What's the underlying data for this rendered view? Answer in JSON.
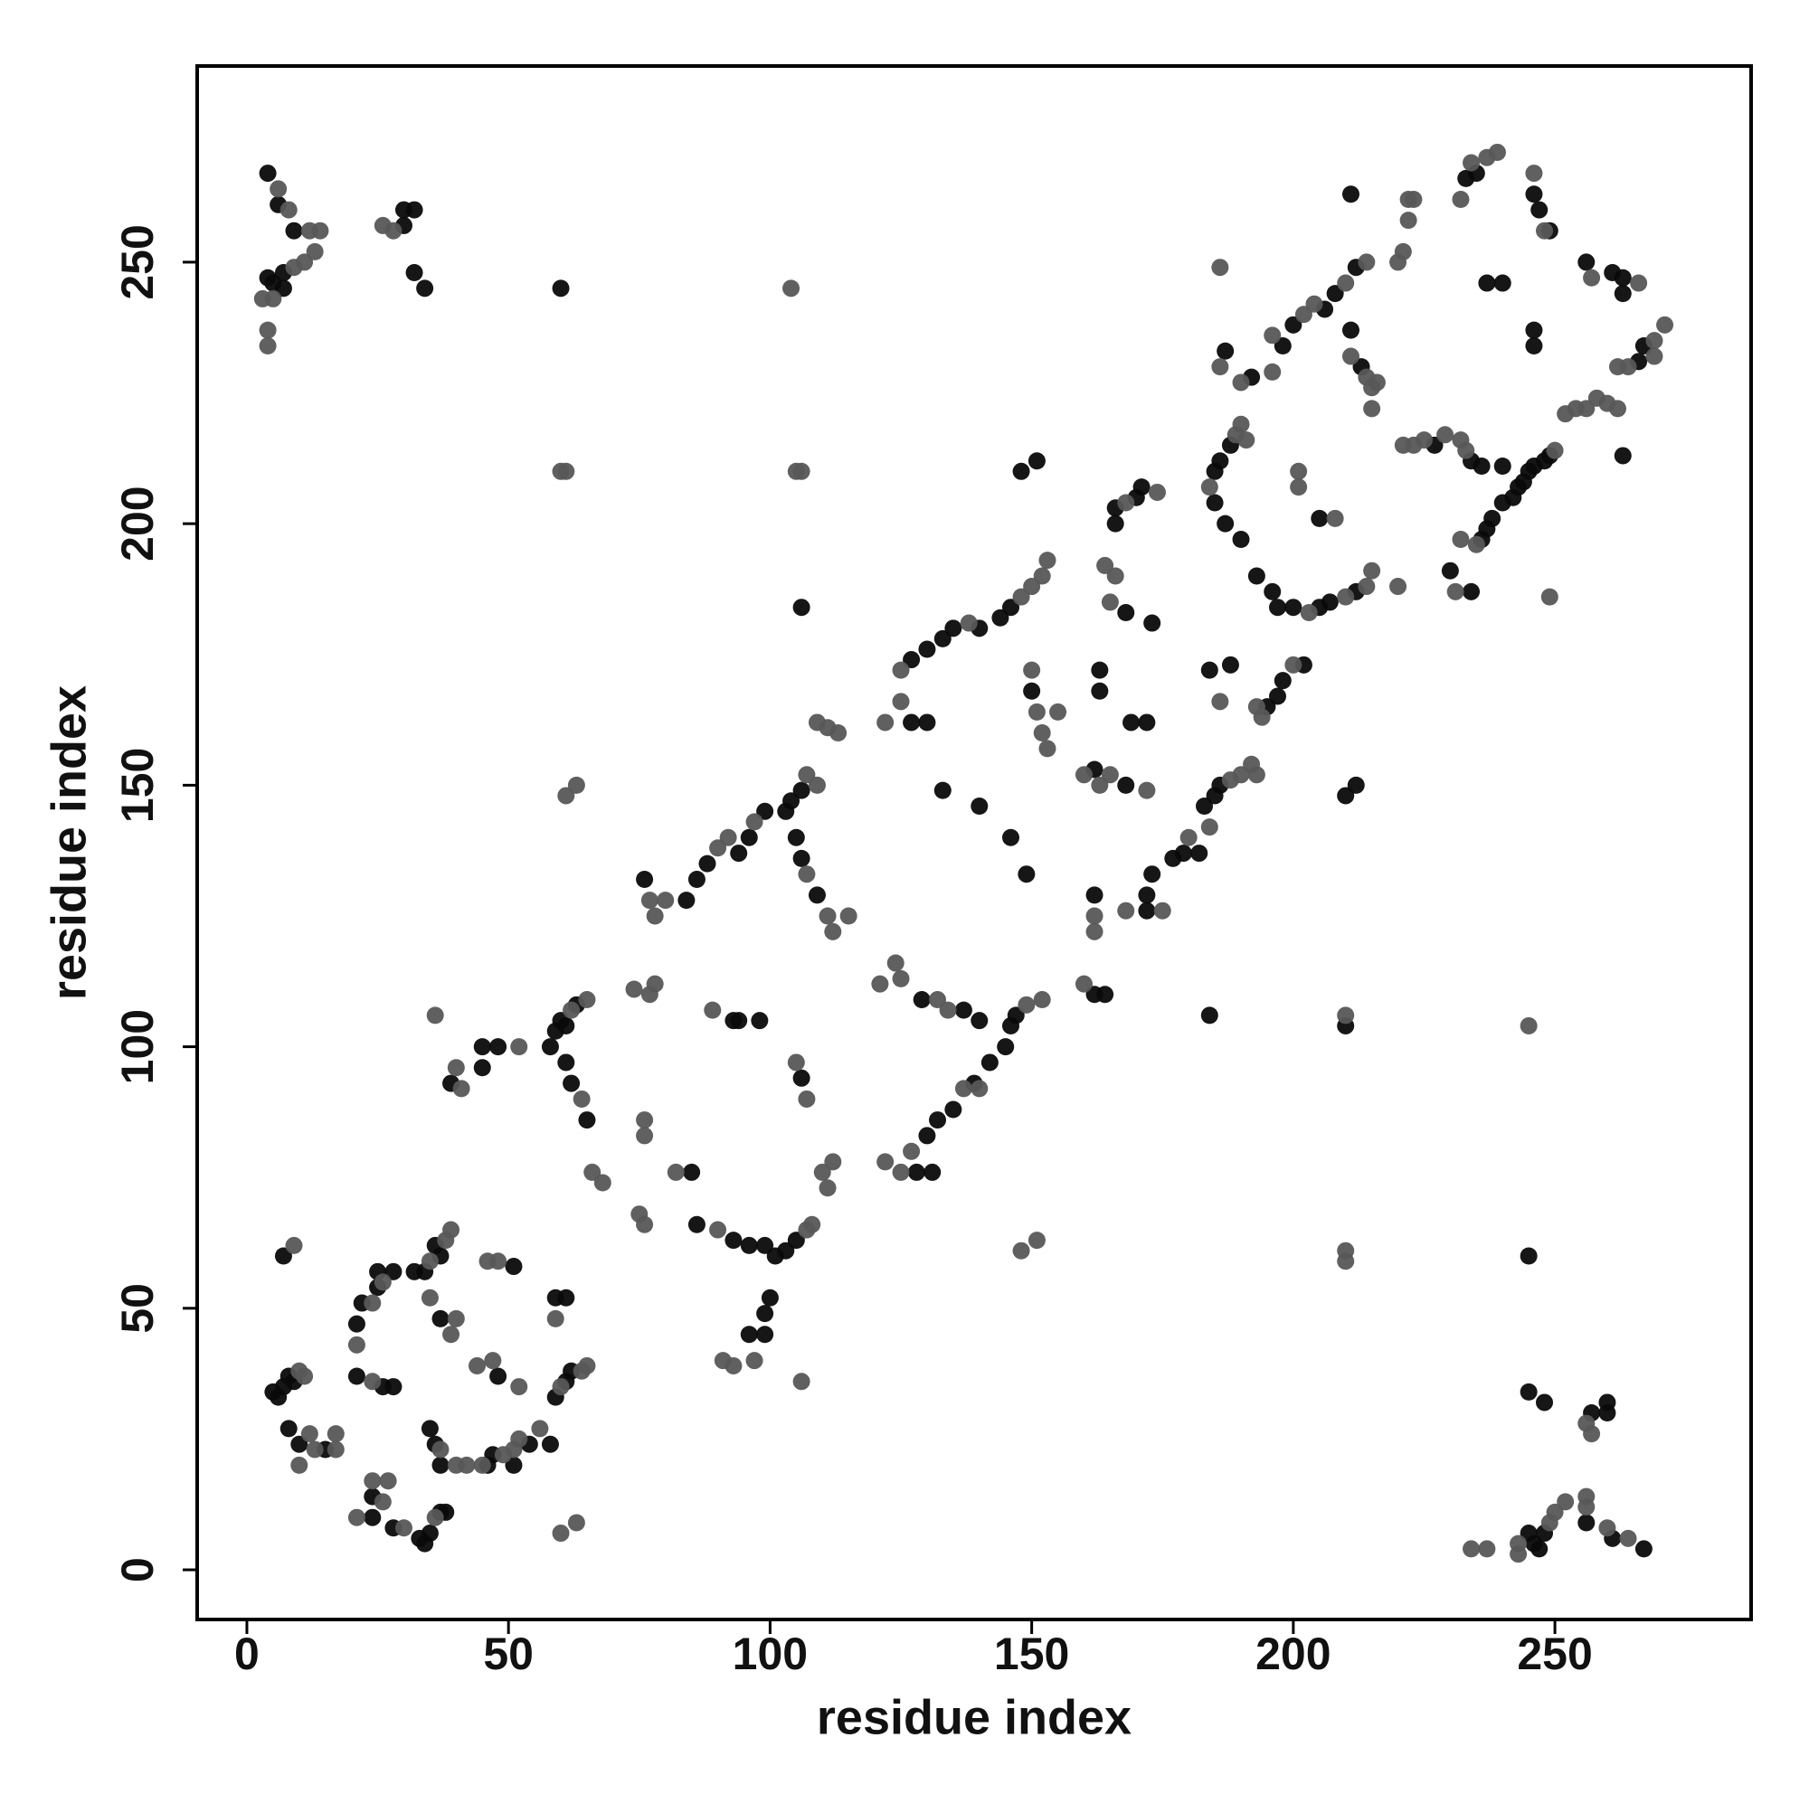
{
  "chart_data": {
    "type": "scatter",
    "xlabel": "residue index",
    "ylabel": "residue index",
    "xlim": [
      -9.5,
      287.5
    ],
    "ylim": [
      -9.5,
      287.5
    ],
    "xticks": [
      0,
      50,
      100,
      150,
      200,
      250
    ],
    "yticks": [
      0,
      50,
      100,
      150,
      200,
      250
    ],
    "grid": false,
    "series": [
      {
        "color": "#0a0a0a",
        "x": [
          4,
          6,
          9,
          4,
          5,
          7,
          7,
          30,
          32,
          30,
          32,
          34,
          60,
          267,
          261,
          256,
          247,
          246,
          245,
          248,
          260,
          260,
          257,
          248,
          245,
          245,
          5,
          6,
          7,
          8,
          9,
          8,
          10,
          15,
          7,
          24,
          24,
          28,
          33,
          34,
          35,
          37,
          38,
          21,
          21,
          22,
          25,
          25,
          28,
          26,
          28,
          32,
          34,
          36,
          37,
          37,
          35,
          36,
          37,
          46,
          47,
          51,
          54,
          58,
          51,
          48,
          59,
          61,
          59,
          61,
          62,
          39,
          45,
          45,
          48,
          96,
          99,
          99,
          100,
          58,
          59,
          60,
          61,
          63,
          61,
          62,
          65,
          85,
          86,
          93,
          94,
          98,
          93,
          96,
          99,
          101,
          103,
          105,
          106,
          76,
          84,
          86,
          88,
          94,
          96,
          99,
          103,
          104,
          106,
          105,
          106,
          109,
          106,
          129,
          137,
          128,
          131,
          130,
          132,
          135,
          139,
          142,
          145,
          146,
          147,
          140,
          127,
          130,
          133,
          135,
          140,
          144,
          146,
          127,
          130,
          133,
          140,
          146,
          149,
          148,
          151,
          150,
          162,
          168,
          162,
          164,
          162,
          163,
          163,
          166,
          166,
          170,
          171,
          168,
          169,
          172,
          173,
          172,
          172,
          173,
          177,
          179,
          182,
          183,
          185,
          186,
          184,
          184,
          188,
          185,
          186,
          188,
          185,
          187,
          190,
          192,
          187,
          193,
          196,
          197,
          200,
          205,
          207,
          212,
          195,
          197,
          198,
          202,
          198,
          200,
          206,
          208,
          212,
          205,
          210,
          212,
          210,
          213,
          211,
          211,
          227,
          234,
          236,
          230,
          234,
          236,
          237,
          238,
          240,
          242,
          243,
          244,
          245,
          246,
          248,
          249,
          233,
          235,
          240,
          240,
          237,
          246,
          247,
          249,
          246,
          246,
          263,
          256,
          261,
          263,
          263,
          266,
          267
        ],
        "values": [
          267,
          261,
          256,
          247,
          246,
          245,
          248,
          260,
          260,
          257,
          248,
          245,
          245,
          4,
          6,
          9,
          4,
          5,
          7,
          7,
          30,
          32,
          30,
          32,
          34,
          60,
          34,
          33,
          35,
          37,
          36,
          27,
          24,
          23,
          60,
          10,
          14,
          8,
          6,
          5,
          7,
          11,
          11,
          37,
          47,
          51,
          54,
          57,
          57,
          35,
          35,
          57,
          57,
          62,
          60,
          48,
          27,
          24,
          20,
          20,
          22,
          20,
          24,
          24,
          58,
          37,
          52,
          52,
          33,
          36,
          38,
          93,
          96,
          100,
          100,
          45,
          45,
          49,
          52,
          100,
          103,
          105,
          104,
          108,
          97,
          93,
          86,
          76,
          66,
          105,
          105,
          105,
          63,
          62,
          62,
          60,
          61,
          63,
          94,
          132,
          128,
          132,
          135,
          137,
          140,
          145,
          145,
          147,
          149,
          140,
          136,
          129,
          184,
          109,
          107,
          76,
          76,
          83,
          86,
          88,
          93,
          97,
          100,
          104,
          106,
          105,
          174,
          176,
          178,
          180,
          180,
          182,
          184,
          162,
          162,
          149,
          146,
          140,
          133,
          210,
          212,
          168,
          153,
          150,
          110,
          110,
          129,
          172,
          168,
          200,
          203,
          205,
          207,
          183,
          162,
          162,
          181,
          126,
          129,
          133,
          136,
          137,
          137,
          146,
          148,
          150,
          106,
          172,
          173,
          210,
          212,
          215,
          204,
          200,
          197,
          228,
          233,
          190,
          187,
          184,
          184,
          184,
          185,
          187,
          165,
          167,
          170,
          173,
          234,
          238,
          241,
          244,
          249,
          201,
          148,
          150,
          104,
          230,
          237,
          263,
          215,
          212,
          211,
          191,
          187,
          197,
          199,
          201,
          204,
          205,
          207,
          208,
          210,
          211,
          212,
          213,
          266,
          267,
          211,
          246,
          246,
          263,
          260,
          256,
          237,
          234,
          213,
          250,
          248,
          247,
          244,
          231,
          234
        ]
      },
      {
        "color": "#575757",
        "x": [
          6,
          8,
          3,
          5,
          4,
          4,
          9,
          11,
          13,
          14,
          12,
          26,
          28,
          104,
          264,
          260,
          243,
          243,
          237,
          234,
          249,
          250,
          252,
          256,
          256,
          257,
          256,
          245,
          10,
          11,
          10,
          12,
          13,
          17,
          17,
          9,
          21,
          24,
          26,
          27,
          30,
          36,
          21,
          24,
          26,
          24,
          35,
          38,
          39,
          35,
          39,
          40,
          37,
          40,
          42,
          45,
          49,
          51,
          52,
          56,
          46,
          48,
          44,
          47,
          52,
          59,
          60,
          64,
          65,
          60,
          63,
          36,
          40,
          41,
          52,
          93,
          97,
          91,
          106,
          62,
          65,
          64,
          66,
          68,
          74,
          77,
          78,
          76,
          76,
          75,
          76,
          82,
          89,
          90,
          107,
          108,
          105,
          107,
          110,
          112,
          111,
          77,
          78,
          80,
          90,
          92,
          97,
          107,
          109,
          107,
          111,
          112,
          115,
          109,
          111,
          113,
          61,
          63,
          60,
          61,
          105,
          106,
          121,
          124,
          125,
          132,
          134,
          122,
          125,
          127,
          137,
          140,
          149,
          152,
          125,
          138,
          148,
          150,
          152,
          153,
          125,
          122,
          148,
          151,
          150,
          151,
          152,
          153,
          155,
          160,
          163,
          165,
          172,
          160,
          162,
          162,
          164,
          166,
          165,
          168,
          174,
          168,
          175,
          180,
          184,
          188,
          190,
          192,
          193,
          186,
          184,
          189,
          190,
          191,
          190,
          186,
          186,
          203,
          210,
          214,
          215,
          193,
          200,
          194,
          196,
          196,
          202,
          204,
          210,
          214,
          201,
          201,
          208,
          210,
          210,
          210,
          211,
          214,
          215,
          215,
          216,
          220,
          221,
          223,
          225,
          229,
          232,
          233,
          220,
          221,
          222,
          222,
          223,
          231,
          232,
          235,
          250,
          232,
          234,
          237,
          239,
          246,
          248,
          249,
          252,
          254,
          256,
          258,
          260,
          262,
          257,
          266,
          262,
          264,
          269,
          269,
          271
        ],
        "values": [
          264,
          260,
          243,
          243,
          237,
          234,
          249,
          250,
          252,
          256,
          256,
          257,
          256,
          245,
          6,
          8,
          3,
          5,
          4,
          4,
          9,
          11,
          13,
          14,
          12,
          26,
          28,
          104,
          38,
          37,
          20,
          26,
          23,
          26,
          23,
          62,
          10,
          17,
          13,
          17,
          8,
          10,
          43,
          51,
          55,
          36,
          59,
          63,
          65,
          52,
          45,
          48,
          23,
          20,
          20,
          20,
          22,
          23,
          25,
          27,
          59,
          59,
          39,
          40,
          35,
          48,
          35,
          38,
          39,
          7,
          9,
          106,
          96,
          92,
          100,
          39,
          40,
          40,
          36,
          107,
          109,
          90,
          76,
          74,
          111,
          110,
          112,
          86,
          83,
          68,
          66,
          76,
          107,
          65,
          65,
          66,
          97,
          90,
          76,
          78,
          73,
          128,
          125,
          128,
          138,
          140,
          143,
          152,
          150,
          133,
          125,
          122,
          125,
          162,
          161,
          160,
          148,
          150,
          210,
          210,
          210,
          210,
          112,
          116,
          113,
          109,
          107,
          78,
          76,
          80,
          92,
          92,
          108,
          109,
          172,
          181,
          186,
          188,
          190,
          193,
          166,
          162,
          61,
          63,
          172,
          164,
          160,
          157,
          164,
          152,
          150,
          152,
          149,
          112,
          125,
          122,
          192,
          190,
          185,
          204,
          206,
          126,
          126,
          140,
          142,
          151,
          152,
          154,
          152,
          166,
          207,
          217,
          219,
          216,
          227,
          230,
          249,
          183,
          186,
          188,
          191,
          165,
          173,
          163,
          229,
          236,
          240,
          242,
          246,
          250,
          210,
          207,
          201,
          106,
          59,
          61,
          232,
          228,
          226,
          222,
          227,
          188,
          215,
          215,
          216,
          217,
          216,
          214,
          250,
          252,
          258,
          262,
          262,
          187,
          197,
          196,
          214,
          262,
          269,
          270,
          271,
          267,
          256,
          186,
          221,
          222,
          222,
          224,
          223,
          222,
          247,
          246,
          230,
          230,
          235,
          232,
          238
        ]
      }
    ]
  }
}
